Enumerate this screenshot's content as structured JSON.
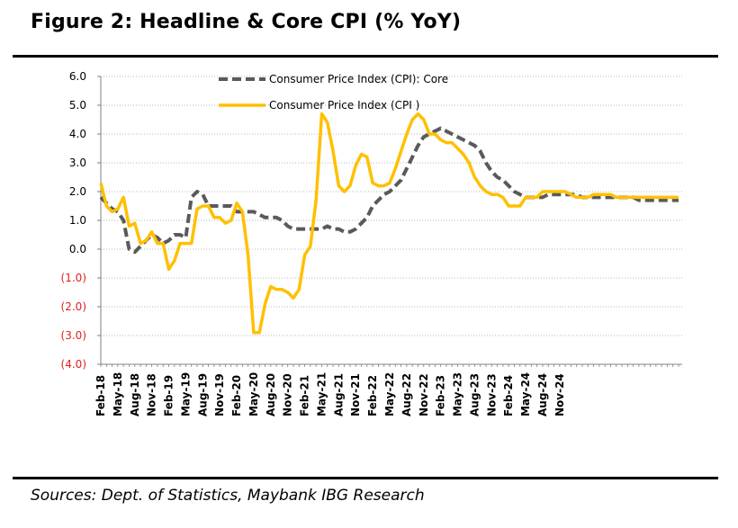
{
  "figure": {
    "title": "Figure 2: Headline & Core CPI (% YoY)",
    "sources": "Sources: Dept. of Statistics, Maybank IBG Research"
  },
  "chart_data": {
    "type": "line",
    "title": "Figure 2: Headline & Core CPI (% YoY)",
    "xlabel": "",
    "ylabel": "",
    "ylim": [
      -4,
      6
    ],
    "y_ticks": [
      -4,
      -3,
      -2,
      -1,
      0,
      1,
      2,
      3,
      4,
      5,
      6
    ],
    "y_tick_labels": [
      "(4.0)",
      "(3.0)",
      "(2.0)",
      "(1.0)",
      "0.0",
      "1.0",
      "2.0",
      "3.0",
      "4.0",
      "5.0",
      "6.0"
    ],
    "negative_tick_color": "#e02020",
    "grid": "horizontal dotted",
    "legend_position": "top-center",
    "x_start": "Feb-18",
    "x_tick_labels": [
      "Feb-18",
      "May-18",
      "Aug-18",
      "Nov-18",
      "Feb-19",
      "May-19",
      "Aug-19",
      "Nov-19",
      "Feb-20",
      "May-20",
      "Aug-20",
      "Nov-20",
      "Feb-21",
      "May-21",
      "Aug-21",
      "Nov-21",
      "Feb-22",
      "May-22",
      "Aug-22",
      "Nov-22",
      "Feb-23",
      "May-23",
      "Aug-23",
      "Nov-23",
      "Feb-24",
      "May-24",
      "Aug-24",
      "Nov-24"
    ],
    "series": [
      {
        "name": "Consumer Price Index (CPI): Core",
        "color": "#5a5a5a",
        "style": "dashed",
        "values": [
          1.8,
          1.6,
          1.4,
          1.3,
          1.0,
          0.0,
          -0.1,
          0.1,
          0.3,
          0.5,
          0.4,
          0.2,
          0.3,
          0.5,
          0.5,
          0.4,
          1.8,
          2.0,
          1.9,
          1.5,
          1.5,
          1.5,
          1.5,
          1.5,
          1.3,
          1.3,
          1.3,
          1.3,
          1.2,
          1.1,
          1.1,
          1.1,
          1.0,
          0.8,
          0.7,
          0.7,
          0.7,
          0.7,
          0.7,
          0.7,
          0.8,
          0.7,
          0.7,
          0.6,
          0.6,
          0.7,
          0.9,
          1.1,
          1.5,
          1.7,
          1.9,
          2.0,
          2.2,
          2.4,
          2.8,
          3.2,
          3.6,
          3.9,
          4.0,
          4.1,
          4.2,
          4.1,
          4.0,
          3.9,
          3.8,
          3.7,
          3.6,
          3.4,
          3.0,
          2.7,
          2.5,
          2.4,
          2.2,
          2.0,
          1.9,
          1.8,
          1.8,
          1.8,
          1.8,
          1.9,
          1.9,
          1.9,
          1.9,
          1.9,
          1.9,
          1.8,
          1.8,
          1.8,
          1.8,
          1.8,
          1.8,
          1.8,
          1.8,
          1.8,
          1.8,
          1.7,
          1.7,
          1.7,
          1.7,
          1.7,
          1.7,
          1.7,
          1.7
        ]
      },
      {
        "name": "Consumer Price Index (CPI )",
        "color": "#ffc000",
        "style": "solid",
        "values": [
          2.3,
          1.5,
          1.3,
          1.4,
          1.8,
          0.8,
          0.9,
          0.2,
          0.3,
          0.6,
          0.2,
          0.2,
          -0.7,
          -0.4,
          0.2,
          0.2,
          0.2,
          1.4,
          1.5,
          1.5,
          1.1,
          1.1,
          0.9,
          1.0,
          1.6,
          1.3,
          -0.2,
          -2.9,
          -2.9,
          -1.9,
          -1.3,
          -1.4,
          -1.4,
          -1.5,
          -1.7,
          -1.4,
          -0.2,
          0.1,
          1.7,
          4.7,
          4.4,
          3.4,
          2.2,
          2.0,
          2.2,
          2.9,
          3.3,
          3.2,
          2.3,
          2.2,
          2.2,
          2.3,
          2.8,
          3.4,
          4.0,
          4.5,
          4.7,
          4.5,
          4.0,
          4.0,
          3.8,
          3.7,
          3.7,
          3.5,
          3.3,
          3.0,
          2.5,
          2.2,
          2.0,
          1.9,
          1.9,
          1.8,
          1.5,
          1.5,
          1.5,
          1.8,
          1.8,
          1.8,
          2.0,
          2.0,
          2.0,
          2.0,
          2.0,
          1.9,
          1.8,
          1.8,
          1.8,
          1.9,
          1.9,
          1.9,
          1.9,
          1.8,
          1.8,
          1.8,
          1.8,
          1.8,
          1.8,
          1.8,
          1.8,
          1.8,
          1.8,
          1.8,
          1.8
        ]
      }
    ]
  }
}
